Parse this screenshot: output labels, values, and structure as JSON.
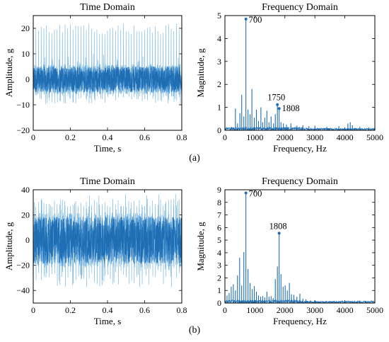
{
  "figure": {
    "panel_labels": [
      "(a)",
      "(b)"
    ],
    "colors": {
      "signal": "#1f6eb4",
      "signal_light": "#6aaee0",
      "axis": "#000000"
    }
  },
  "chart_data": [
    {
      "id": "a-time",
      "type": "line",
      "title": "Time Domain",
      "xlabel": "Time, s",
      "ylabel": "Amplitude, g",
      "xlim": [
        0,
        0.8
      ],
      "ylim": [
        -20,
        25
      ],
      "xticks": [
        0,
        0.2,
        0.4,
        0.6,
        0.8
      ],
      "yticks": [
        -20,
        -10,
        0,
        10,
        20
      ],
      "xticklabels": [
        "0",
        "0.2",
        "0.4",
        "0.6",
        "0.8"
      ],
      "yticklabels": [
        "−20",
        "−10",
        "0",
        "10",
        "20"
      ],
      "signal": {
        "fundamental_hz": 70,
        "peak_max": 22,
        "peak_min": -10,
        "core_amplitude": 6
      }
    },
    {
      "id": "a-freq",
      "type": "line",
      "title": "Frequency Domain",
      "xlabel": "Frequency, Hz",
      "ylabel": "Magnitude, g",
      "xlim": [
        0,
        5000
      ],
      "ylim": [
        0,
        5
      ],
      "xticks": [
        0,
        1000,
        2000,
        3000,
        4000,
        5000
      ],
      "yticks": [
        0,
        1,
        2,
        3,
        4,
        5
      ],
      "xticklabels": [
        "0",
        "1000",
        "2000",
        "3000",
        "4000",
        "5000"
      ],
      "yticklabels": [
        "0",
        "1",
        "2",
        "3",
        "4",
        "5"
      ],
      "peaks": [
        {
          "x": 700,
          "y": 4.85,
          "label": "700"
        },
        {
          "x": 1750,
          "y": 1.12,
          "label": "1750"
        },
        {
          "x": 1808,
          "y": 0.95,
          "label": "1808"
        }
      ],
      "spectrum": [
        [
          350,
          0.95
        ],
        [
          420,
          0.3
        ],
        [
          500,
          0.75
        ],
        [
          560,
          1.55
        ],
        [
          630,
          0.6
        ],
        [
          700,
          4.85
        ],
        [
          770,
          0.9
        ],
        [
          840,
          0.7
        ],
        [
          900,
          1.8
        ],
        [
          980,
          0.55
        ],
        [
          1050,
          0.9
        ],
        [
          1120,
          0.4
        ],
        [
          1200,
          1.0
        ],
        [
          1260,
          0.35
        ],
        [
          1330,
          0.55
        ],
        [
          1400,
          0.85
        ],
        [
          1470,
          0.35
        ],
        [
          1540,
          0.6
        ],
        [
          1620,
          0.3
        ],
        [
          1680,
          0.7
        ],
        [
          1750,
          1.12
        ],
        [
          1808,
          0.95
        ],
        [
          1870,
          0.35
        ],
        [
          1950,
          0.3
        ],
        [
          2050,
          0.25
        ],
        [
          2200,
          0.3
        ],
        [
          2400,
          0.2
        ],
        [
          2600,
          0.22
        ],
        [
          2800,
          0.18
        ],
        [
          3000,
          0.2
        ],
        [
          3400,
          0.15
        ],
        [
          3800,
          0.18
        ],
        [
          4100,
          0.3
        ],
        [
          4180,
          0.35
        ],
        [
          4250,
          0.22
        ],
        [
          4500,
          0.15
        ],
        [
          4800,
          0.12
        ]
      ]
    },
    {
      "id": "b-time",
      "type": "line",
      "title": "Time Domain",
      "xlabel": "Time, s",
      "ylabel": "Amplitude, g",
      "xlim": [
        0,
        0.8
      ],
      "ylim": [
        -50,
        40
      ],
      "xticks": [
        0,
        0.2,
        0.4,
        0.6,
        0.8
      ],
      "yticks": [
        -40,
        -20,
        0,
        20,
        40
      ],
      "xticklabels": [
        "0",
        "0.2",
        "0.4",
        "0.6",
        "0.8"
      ],
      "yticklabels": [
        "−40",
        "−20",
        "0",
        "20",
        "40"
      ],
      "signal": {
        "fundamental_hz": 70,
        "peak_max": 33,
        "peak_min": -40,
        "core_amplitude": 22
      }
    },
    {
      "id": "b-freq",
      "type": "line",
      "title": "Frequency Domain",
      "xlabel": "Frequency, Hz",
      "ylabel": "Magnitude, g",
      "xlim": [
        0,
        5000
      ],
      "ylim": [
        0,
        9
      ],
      "xticks": [
        0,
        1000,
        2000,
        3000,
        4000,
        5000
      ],
      "yticks": [
        0,
        1,
        2,
        3,
        4,
        5,
        6,
        7,
        8,
        9
      ],
      "xticklabels": [
        "0",
        "1000",
        "2000",
        "3000",
        "4000",
        "5000"
      ],
      "yticklabels": [
        "0",
        "1",
        "2",
        "3",
        "4",
        "5",
        "6",
        "7",
        "8",
        "9"
      ],
      "peaks": [
        {
          "x": 700,
          "y": 8.75,
          "label": "700"
        },
        {
          "x": 1808,
          "y": 5.55,
          "label": "1808"
        }
      ],
      "spectrum": [
        [
          70,
          0.6
        ],
        [
          140,
          0.8
        ],
        [
          210,
          1.3
        ],
        [
          280,
          1.5
        ],
        [
          350,
          1.0
        ],
        [
          420,
          2.2
        ],
        [
          490,
          3.6
        ],
        [
          560,
          1.4
        ],
        [
          630,
          4.05
        ],
        [
          700,
          8.75
        ],
        [
          770,
          2.7
        ],
        [
          840,
          1.6
        ],
        [
          910,
          1.1
        ],
        [
          980,
          1.35
        ],
        [
          1050,
          0.9
        ],
        [
          1120,
          0.6
        ],
        [
          1190,
          0.5
        ],
        [
          1260,
          0.55
        ],
        [
          1330,
          0.45
        ],
        [
          1400,
          0.9
        ],
        [
          1470,
          0.5
        ],
        [
          1540,
          0.55
        ],
        [
          1610,
          0.4
        ],
        [
          1680,
          1.9
        ],
        [
          1750,
          2.9
        ],
        [
          1808,
          5.55
        ],
        [
          1870,
          2.3
        ],
        [
          1940,
          1.3
        ],
        [
          2010,
          1.4
        ],
        [
          2080,
          1.0
        ],
        [
          2150,
          1.6
        ],
        [
          2220,
          0.7
        ],
        [
          2300,
          0.65
        ],
        [
          2400,
          0.5
        ],
        [
          2500,
          0.75
        ],
        [
          2600,
          0.35
        ],
        [
          2700,
          0.3
        ],
        [
          2850,
          0.2
        ],
        [
          3000,
          0.15
        ],
        [
          3300,
          0.1
        ],
        [
          3700,
          0.08
        ],
        [
          4200,
          0.1
        ],
        [
          4500,
          0.2
        ],
        [
          4700,
          0.15
        ]
      ]
    }
  ]
}
